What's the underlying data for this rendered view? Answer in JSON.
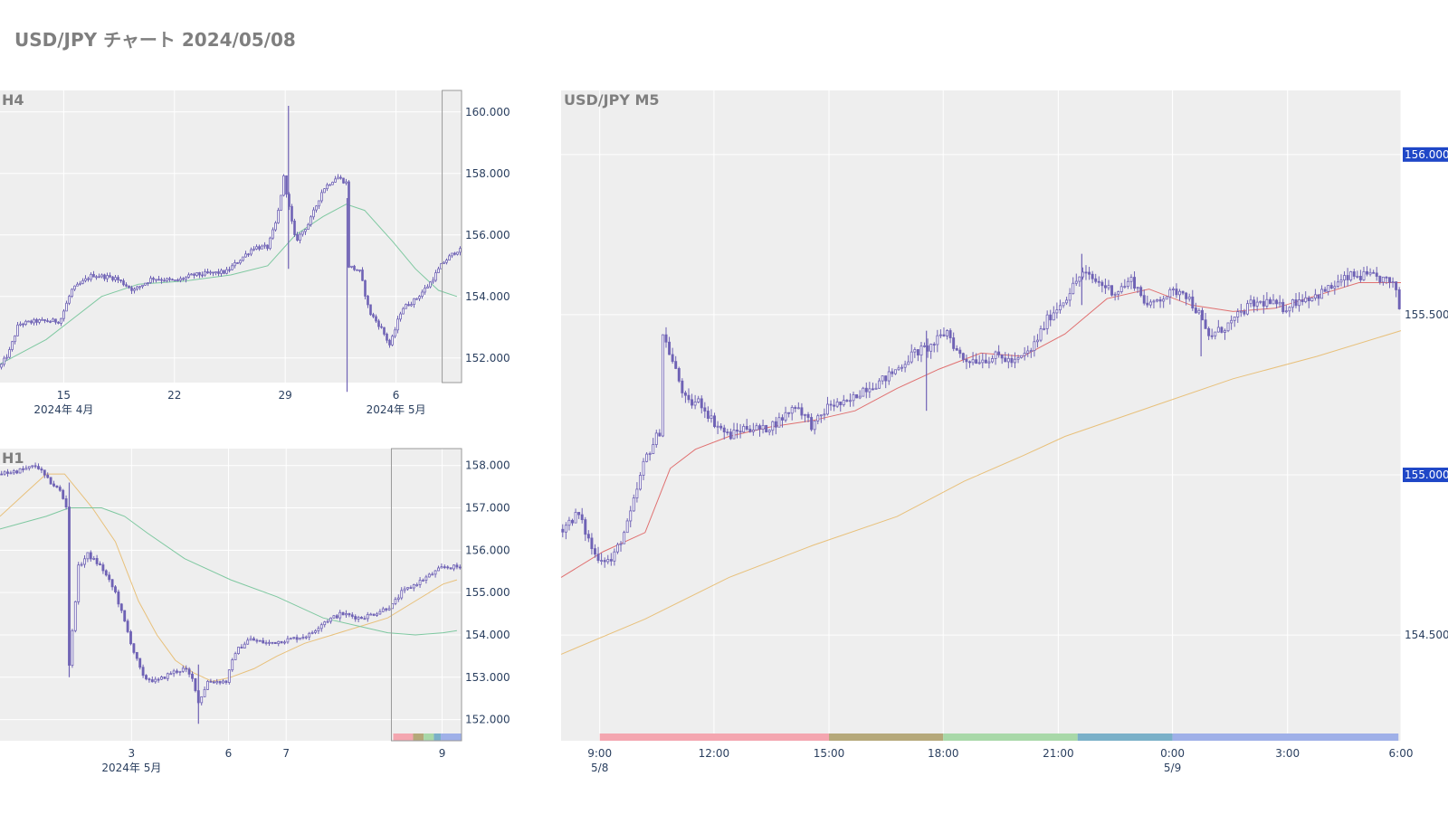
{
  "page": {
    "title": "USD/JPY チャート 2024/05/08"
  },
  "colors": {
    "plot_bg": "#eeeeee",
    "grid": "#ffffff",
    "candle": "#6f62b5",
    "ma_fast": "#e07070",
    "ma_mid": "#e8c07a",
    "ma_slow": "#7ec8a0",
    "price_tag_bg": "#1f47c7",
    "range_box": "#999999"
  },
  "chart_data": [
    {
      "id": "h4",
      "type": "candlestick",
      "title": "H4",
      "ylim": [
        151.2,
        160.7
      ],
      "yticks": [
        "160.000",
        "158.000",
        "156.000",
        "154.000",
        "152.000"
      ],
      "ytick_values": [
        160,
        158,
        156,
        154,
        152
      ],
      "xticks": [
        {
          "label": "15",
          "sub": "2024年 4月",
          "pos": 0.138
        },
        {
          "label": "22",
          "sub": "",
          "pos": 0.378
        },
        {
          "label": "29",
          "sub": "",
          "pos": 0.618
        },
        {
          "label": "6",
          "sub": "2024年 5月",
          "pos": 0.858
        }
      ],
      "anchors": [
        [
          0,
          151.7
        ],
        [
          0.02,
          152.2
        ],
        [
          0.04,
          153.1
        ],
        [
          0.08,
          153.2
        ],
        [
          0.13,
          153.2
        ],
        [
          0.155,
          154.2
        ],
        [
          0.2,
          154.7
        ],
        [
          0.25,
          154.6
        ],
        [
          0.29,
          154.2
        ],
        [
          0.33,
          154.6
        ],
        [
          0.38,
          154.5
        ],
        [
          0.42,
          154.7
        ],
        [
          0.49,
          154.8
        ],
        [
          0.52,
          155.2
        ],
        [
          0.55,
          155.6
        ],
        [
          0.58,
          155.6
        ],
        [
          0.6,
          156.5
        ],
        [
          0.615,
          157.9
        ],
        [
          0.625,
          157.0
        ],
        [
          0.64,
          155.8
        ],
        [
          0.67,
          156.4
        ],
        [
          0.7,
          157.5
        ],
        [
          0.73,
          157.9
        ],
        [
          0.75,
          157.7
        ],
        [
          0.755,
          155.0
        ],
        [
          0.78,
          154.8
        ],
        [
          0.8,
          153.5
        ],
        [
          0.825,
          153.0
        ],
        [
          0.845,
          152.4
        ],
        [
          0.87,
          153.6
        ],
        [
          0.9,
          153.9
        ],
        [
          0.93,
          154.4
        ],
        [
          0.96,
          155.1
        ],
        [
          0.99,
          155.5
        ]
      ],
      "ma": [
        {
          "color_key": "ma_slow",
          "points": [
            [
              0,
              151.8
            ],
            [
              0.1,
              152.6
            ],
            [
              0.16,
              153.3
            ],
            [
              0.22,
              154.0
            ],
            [
              0.3,
              154.4
            ],
            [
              0.4,
              154.5
            ],
            [
              0.5,
              154.7
            ],
            [
              0.58,
              155.0
            ],
            [
              0.64,
              156.0
            ],
            [
              0.7,
              156.6
            ],
            [
              0.75,
              157.0
            ],
            [
              0.79,
              156.8
            ],
            [
              0.85,
              155.8
            ],
            [
              0.9,
              154.9
            ],
            [
              0.95,
              154.2
            ],
            [
              0.99,
              154.0
            ]
          ]
        }
      ],
      "spikes": [
        {
          "pos": 0.625,
          "high": 160.2,
          "low": 154.9
        },
        {
          "pos": 0.752,
          "high": 157.2,
          "low": 150.9
        }
      ],
      "range_box": {
        "from": 0.958,
        "to": 1.0
      }
    },
    {
      "id": "h1",
      "type": "candlestick",
      "title": "H1",
      "ylim": [
        151.5,
        158.4
      ],
      "yticks": [
        "158.000",
        "157.000",
        "156.000",
        "155.000",
        "154.000",
        "153.000",
        "152.000"
      ],
      "ytick_values": [
        158,
        157,
        156,
        155,
        154,
        153,
        152
      ],
      "xticks": [
        {
          "label": "3",
          "sub": "2024年 5月",
          "pos": 0.285
        },
        {
          "label": "6",
          "sub": "",
          "pos": 0.495
        },
        {
          "label": "7",
          "sub": "",
          "pos": 0.62
        },
        {
          "label": "9",
          "sub": "",
          "pos": 0.958
        }
      ],
      "anchors": [
        [
          0,
          157.8
        ],
        [
          0.05,
          157.9
        ],
        [
          0.08,
          158.0
        ],
        [
          0.1,
          157.7
        ],
        [
          0.13,
          157.4
        ],
        [
          0.145,
          157.0
        ],
        [
          0.15,
          153.3
        ],
        [
          0.17,
          155.6
        ],
        [
          0.19,
          155.9
        ],
        [
          0.22,
          155.6
        ],
        [
          0.25,
          155.0
        ],
        [
          0.27,
          154.3
        ],
        [
          0.29,
          153.6
        ],
        [
          0.31,
          153.0
        ],
        [
          0.34,
          152.9
        ],
        [
          0.37,
          153.1
        ],
        [
          0.4,
          153.2
        ],
        [
          0.42,
          152.9
        ],
        [
          0.43,
          152.4
        ],
        [
          0.45,
          152.9
        ],
        [
          0.49,
          152.9
        ],
        [
          0.51,
          153.6
        ],
        [
          0.54,
          153.9
        ],
        [
          0.58,
          153.8
        ],
        [
          0.63,
          153.9
        ],
        [
          0.67,
          154.0
        ],
        [
          0.7,
          154.3
        ],
        [
          0.74,
          154.5
        ],
        [
          0.78,
          154.4
        ],
        [
          0.81,
          154.5
        ],
        [
          0.85,
          154.7
        ],
        [
          0.87,
          155.0
        ],
        [
          0.9,
          155.2
        ],
        [
          0.93,
          155.4
        ],
        [
          0.96,
          155.6
        ],
        [
          0.99,
          155.6
        ]
      ],
      "ma": [
        {
          "color_key": "ma_mid",
          "points": [
            [
              0,
              156.8
            ],
            [
              0.06,
              157.4
            ],
            [
              0.1,
              157.8
            ],
            [
              0.14,
              157.8
            ],
            [
              0.2,
              157.0
            ],
            [
              0.25,
              156.2
            ],
            [
              0.3,
              154.8
            ],
            [
              0.34,
              154.0
            ],
            [
              0.38,
              153.4
            ],
            [
              0.42,
              153.1
            ],
            [
              0.46,
              152.9
            ],
            [
              0.5,
              153.0
            ],
            [
              0.55,
              153.2
            ],
            [
              0.6,
              153.5
            ],
            [
              0.66,
              153.8
            ],
            [
              0.72,
              154.0
            ],
            [
              0.78,
              154.2
            ],
            [
              0.84,
              154.4
            ],
            [
              0.9,
              154.8
            ],
            [
              0.96,
              155.2
            ],
            [
              0.99,
              155.3
            ]
          ]
        },
        {
          "color_key": "ma_slow",
          "points": [
            [
              0,
              156.5
            ],
            [
              0.1,
              156.8
            ],
            [
              0.15,
              157.0
            ],
            [
              0.22,
              157.0
            ],
            [
              0.27,
              156.8
            ],
            [
              0.32,
              156.4
            ],
            [
              0.4,
              155.8
            ],
            [
              0.5,
              155.3
            ],
            [
              0.6,
              154.9
            ],
            [
              0.7,
              154.4
            ],
            [
              0.78,
              154.2
            ],
            [
              0.84,
              154.05
            ],
            [
              0.9,
              154.0
            ],
            [
              0.96,
              154.05
            ],
            [
              0.99,
              154.1
            ]
          ]
        }
      ],
      "spikes": [
        {
          "pos": 0.15,
          "high": 157.6,
          "low": 153.0
        },
        {
          "pos": 0.43,
          "high": 153.3,
          "low": 151.9
        }
      ],
      "range_box": {
        "from": 0.848,
        "to": 1.0
      },
      "session_bar": [
        {
          "from": 0.852,
          "to": 0.895,
          "color": "#f4a6b0"
        },
        {
          "from": 0.895,
          "to": 0.918,
          "color": "#b5a87a"
        },
        {
          "from": 0.918,
          "to": 0.94,
          "color": "#a8d8a8"
        },
        {
          "from": 0.94,
          "to": 0.955,
          "color": "#7ab0c8"
        },
        {
          "from": 0.955,
          "to": 1.0,
          "color": "#9fb0e8"
        }
      ]
    },
    {
      "id": "m5",
      "type": "candlestick",
      "title": "USD/JPY M5",
      "ylim": [
        154.17,
        156.2
      ],
      "yticks": [
        "156.000",
        "155.500",
        "155.000",
        "154.500"
      ],
      "ytick_values": [
        156.0,
        155.5,
        155.0,
        154.5
      ],
      "price_tags": [
        "156.000",
        "155.000"
      ],
      "xticks": [
        {
          "label": "9:00",
          "sub": "5/8",
          "pos": 0.046
        },
        {
          "label": "12:00",
          "sub": "",
          "pos": 0.182
        },
        {
          "label": "15:00",
          "sub": "",
          "pos": 0.319
        },
        {
          "label": "18:00",
          "sub": "",
          "pos": 0.455
        },
        {
          "label": "21:00",
          "sub": "",
          "pos": 0.592
        },
        {
          "label": "0:00",
          "sub": "5/9",
          "pos": 0.728
        },
        {
          "label": "3:00",
          "sub": "",
          "pos": 0.865
        },
        {
          "label": "6:00",
          "sub": "",
          "pos": 1.0
        }
      ],
      "anchors": [
        [
          0,
          154.83
        ],
        [
          0.02,
          154.88
        ],
        [
          0.04,
          154.75
        ],
        [
          0.06,
          154.73
        ],
        [
          0.08,
          154.85
        ],
        [
          0.1,
          155.05
        ],
        [
          0.12,
          155.15
        ],
        [
          0.12,
          155.45
        ],
        [
          0.15,
          155.22
        ],
        [
          0.165,
          155.23
        ],
        [
          0.18,
          155.17
        ],
        [
          0.2,
          155.12
        ],
        [
          0.22,
          155.15
        ],
        [
          0.24,
          155.14
        ],
        [
          0.26,
          155.17
        ],
        [
          0.28,
          155.22
        ],
        [
          0.3,
          155.15
        ],
        [
          0.32,
          155.22
        ],
        [
          0.34,
          155.22
        ],
        [
          0.36,
          155.27
        ],
        [
          0.38,
          155.29
        ],
        [
          0.4,
          155.33
        ],
        [
          0.42,
          155.38
        ],
        [
          0.44,
          155.4
        ],
        [
          0.46,
          155.45
        ],
        [
          0.47,
          155.39
        ],
        [
          0.48,
          155.36
        ],
        [
          0.5,
          155.36
        ],
        [
          0.52,
          155.37
        ],
        [
          0.54,
          155.35
        ],
        [
          0.56,
          155.39
        ],
        [
          0.58,
          155.49
        ],
        [
          0.6,
          155.55
        ],
        [
          0.62,
          155.63
        ],
        [
          0.64,
          155.6
        ],
        [
          0.66,
          155.57
        ],
        [
          0.68,
          155.61
        ],
        [
          0.7,
          155.52
        ],
        [
          0.71,
          155.55
        ],
        [
          0.74,
          155.58
        ],
        [
          0.76,
          155.5
        ],
        [
          0.77,
          155.43
        ],
        [
          0.79,
          155.46
        ],
        [
          0.8,
          155.48
        ],
        [
          0.82,
          155.53
        ],
        [
          0.84,
          155.54
        ],
        [
          0.86,
          155.52
        ],
        [
          0.88,
          155.55
        ],
        [
          0.9,
          155.56
        ],
        [
          0.92,
          155.59
        ],
        [
          0.94,
          155.62
        ],
        [
          0.96,
          155.62
        ],
        [
          0.98,
          155.61
        ],
        [
          0.995,
          155.58
        ],
        [
          1.0,
          155.48
        ]
      ],
      "ma": [
        {
          "color_key": "ma_fast",
          "points": [
            [
              0,
              154.68
            ],
            [
              0.05,
              154.76
            ],
            [
              0.1,
              154.82
            ],
            [
              0.13,
              155.02
            ],
            [
              0.16,
              155.08
            ],
            [
              0.2,
              155.12
            ],
            [
              0.25,
              155.15
            ],
            [
              0.3,
              155.17
            ],
            [
              0.35,
              155.2
            ],
            [
              0.4,
              155.27
            ],
            [
              0.45,
              155.33
            ],
            [
              0.5,
              155.38
            ],
            [
              0.55,
              155.37
            ],
            [
              0.6,
              155.44
            ],
            [
              0.65,
              155.55
            ],
            [
              0.7,
              155.58
            ],
            [
              0.75,
              155.53
            ],
            [
              0.8,
              155.51
            ],
            [
              0.85,
              155.52
            ],
            [
              0.9,
              155.56
            ],
            [
              0.95,
              155.6
            ],
            [
              1.0,
              155.6
            ]
          ]
        },
        {
          "color_key": "ma_mid",
          "points": [
            [
              0,
              154.44
            ],
            [
              0.1,
              154.55
            ],
            [
              0.2,
              154.68
            ],
            [
              0.3,
              154.78
            ],
            [
              0.4,
              154.87
            ],
            [
              0.48,
              154.98
            ],
            [
              0.55,
              155.06
            ],
            [
              0.6,
              155.12
            ],
            [
              0.7,
              155.21
            ],
            [
              0.8,
              155.3
            ],
            [
              0.9,
              155.37
            ],
            [
              1.0,
              155.45
            ]
          ]
        }
      ],
      "spikes": [
        {
          "pos": 0.435,
          "high": 155.45,
          "low": 155.2
        },
        {
          "pos": 0.762,
          "high": 155.5,
          "low": 155.37
        },
        {
          "pos": 0.62,
          "high": 155.69,
          "low": 155.53
        }
      ],
      "session_bar": [
        {
          "from": 0.046,
          "to": 0.319,
          "color": "#f4a6b0"
        },
        {
          "from": 0.319,
          "to": 0.455,
          "color": "#b5a87a"
        },
        {
          "from": 0.455,
          "to": 0.615,
          "color": "#a8d8a8"
        },
        {
          "from": 0.615,
          "to": 0.728,
          "color": "#7ab0c8"
        },
        {
          "from": 0.728,
          "to": 0.997,
          "color": "#9fb0e8"
        }
      ]
    }
  ]
}
